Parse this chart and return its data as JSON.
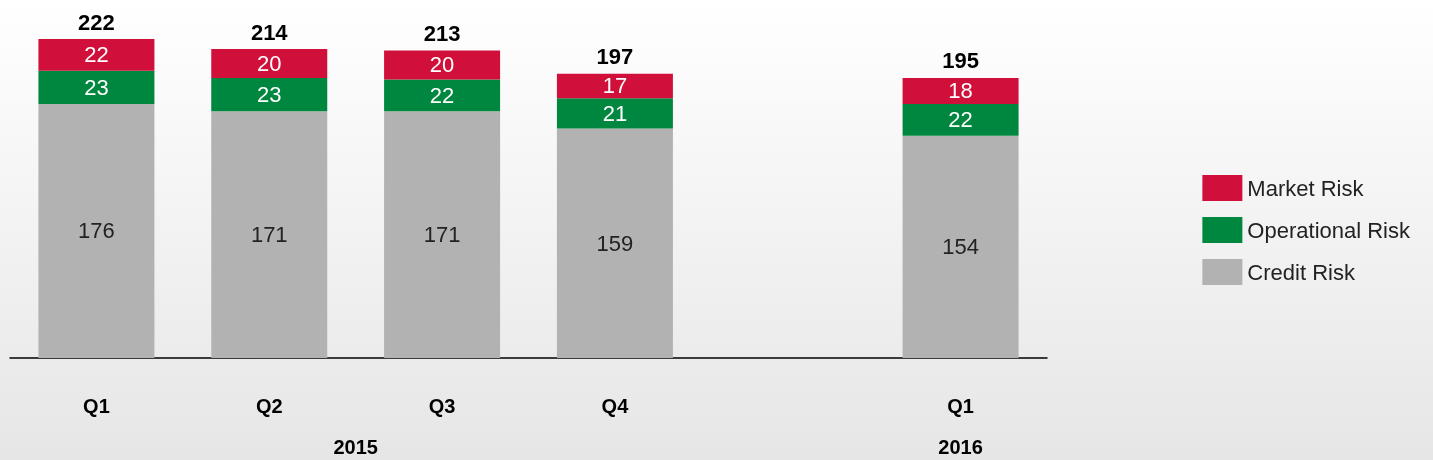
{
  "chart_data": {
    "type": "bar",
    "stacked": true,
    "categories": [
      "Q1",
      "Q2",
      "Q3",
      "Q4",
      null,
      "Q1"
    ],
    "series": [
      {
        "name": "Credit Risk",
        "color": "#b2b2b2",
        "values": [
          176,
          171,
          171,
          159,
          null,
          154
        ]
      },
      {
        "name": "Operational Risk",
        "color": "#00873f",
        "values": [
          23,
          23,
          22,
          21,
          null,
          22
        ]
      },
      {
        "name": "Market Risk",
        "color": "#d0103a",
        "values": [
          22,
          20,
          20,
          17,
          null,
          18
        ]
      }
    ],
    "data_labels": true,
    "totals": [
      "222",
      "214",
      "213",
      "197",
      null,
      "195"
    ],
    "annotations": [
      "2015",
      "2016"
    ],
    "legend": "right",
    "grid": false
  }
}
